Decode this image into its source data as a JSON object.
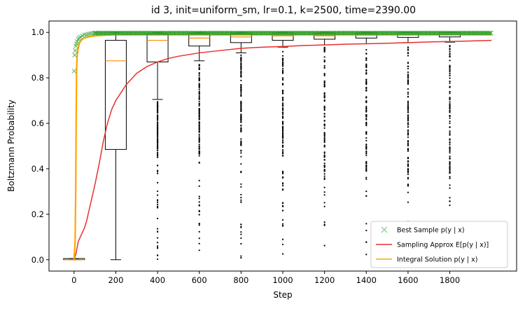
{
  "chart_data": {
    "type": "line",
    "title": "id 3, init=uniform_sm, lr=0.1, k=2500, time=2390.00",
    "xlabel": "Step",
    "ylabel": "Boltzmann Probability",
    "xlim": [
      -120,
      2120
    ],
    "ylim": [
      -0.05,
      1.05
    ],
    "x_ticks": [
      0,
      200,
      400,
      600,
      800,
      1000,
      1200,
      1400,
      1600,
      1800
    ],
    "y_ticks": [
      0.0,
      0.2,
      0.4,
      0.6,
      0.8,
      1.0
    ],
    "x_tick_labels": [
      "0",
      "200",
      "400",
      "600",
      "800",
      "1000",
      "1200",
      "1400",
      "1600",
      "1800"
    ],
    "y_tick_labels": [
      "0.0",
      "0.2",
      "0.4",
      "0.6",
      "0.8",
      "1.0"
    ],
    "legend_position": "bottom-right",
    "legend": [
      {
        "label": "Best Sample p(y | x)",
        "color": "#2ca02c",
        "marker": "x"
      },
      {
        "label": "Sampling Approx E[p(y | x)]",
        "color": "#e8302e",
        "marker": "line"
      },
      {
        "label": "Integral Solution p(y | x)",
        "color": "#ffa500",
        "marker": "line"
      }
    ],
    "series": [
      {
        "name": "Sampling Approx E[p(y | x)]",
        "color": "#e8302e",
        "x": [
          0,
          10,
          20,
          30,
          40,
          50,
          60,
          80,
          100,
          120,
          140,
          160,
          180,
          200,
          250,
          300,
          350,
          400,
          450,
          500,
          600,
          700,
          800,
          900,
          1000,
          1100,
          1200,
          1300,
          1400,
          1500,
          1600,
          1700,
          1800,
          1900,
          2000
        ],
        "y": [
          0.0,
          0.03,
          0.08,
          0.1,
          0.12,
          0.14,
          0.17,
          0.25,
          0.33,
          0.42,
          0.52,
          0.6,
          0.66,
          0.7,
          0.77,
          0.82,
          0.85,
          0.87,
          0.885,
          0.895,
          0.91,
          0.92,
          0.93,
          0.935,
          0.938,
          0.942,
          0.945,
          0.948,
          0.95,
          0.952,
          0.955,
          0.958,
          0.96,
          0.962,
          0.965
        ]
      },
      {
        "name": "Integral Solution p(y | x)",
        "color": "#ffa500",
        "x": [
          0,
          5,
          8,
          10,
          12,
          15,
          20,
          25,
          30,
          40,
          50,
          70,
          100,
          150,
          200,
          300,
          500,
          1000,
          1500,
          2000
        ],
        "y": [
          0.0,
          0.08,
          0.3,
          0.6,
          0.83,
          0.9,
          0.93,
          0.95,
          0.96,
          0.97,
          0.975,
          0.98,
          0.985,
          0.988,
          0.99,
          0.99,
          0.99,
          0.99,
          0.99,
          0.99
        ]
      },
      {
        "name": "Best Sample p(y | x)",
        "color": "#2ca02c",
        "marker": "x",
        "x": [
          0,
          3,
          6,
          9,
          12,
          15,
          20,
          25,
          30,
          40,
          50,
          60,
          70,
          80,
          90,
          100
        ],
        "y": [
          0.83,
          0.9,
          0.92,
          0.94,
          0.95,
          0.96,
          0.97,
          0.975,
          0.98,
          0.985,
          0.99,
          0.99,
          0.993,
          0.995,
          0.996,
          0.997
        ]
      }
    ],
    "boxplots": [
      {
        "x": 0,
        "whisker_low": 0.0,
        "q1": 0.0,
        "median": 0.0,
        "q3": 0.005,
        "whisker_high": 0.005
      },
      {
        "x": 200,
        "whisker_low": 0.0,
        "q1": 0.485,
        "median": 0.875,
        "q3": 0.965,
        "whisker_high": 1.0
      },
      {
        "x": 400,
        "whisker_low": 0.705,
        "q1": 0.87,
        "median": 0.965,
        "q3": 0.995,
        "whisker_high": 1.0
      },
      {
        "x": 600,
        "whisker_low": 0.875,
        "q1": 0.94,
        "median": 0.975,
        "q3": 0.996,
        "whisker_high": 1.0
      },
      {
        "x": 800,
        "whisker_low": 0.91,
        "q1": 0.955,
        "median": 0.98,
        "q3": 0.997,
        "whisker_high": 1.0
      },
      {
        "x": 1000,
        "whisker_low": 0.935,
        "q1": 0.965,
        "median": 0.985,
        "q3": 0.998,
        "whisker_high": 1.0
      },
      {
        "x": 1200,
        "whisker_low": 0.945,
        "q1": 0.97,
        "median": 0.985,
        "q3": 0.998,
        "whisker_high": 1.0
      },
      {
        "x": 1400,
        "whisker_low": 0.95,
        "q1": 0.975,
        "median": 0.988,
        "q3": 0.998,
        "whisker_high": 1.0
      },
      {
        "x": 1600,
        "whisker_low": 0.955,
        "q1": 0.978,
        "median": 0.99,
        "q3": 0.999,
        "whisker_high": 1.0
      },
      {
        "x": 1800,
        "whisker_low": 0.957,
        "q1": 0.98,
        "median": 0.99,
        "q3": 0.999,
        "whisker_high": 1.0
      }
    ],
    "grid": false
  }
}
